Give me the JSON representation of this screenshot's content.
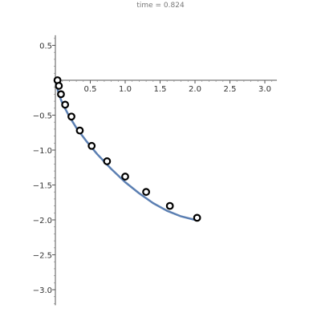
{
  "chart_data": {
    "type": "scatter",
    "title": "time = 0.824",
    "xlabel": "",
    "ylabel": "",
    "xlim": [
      0,
      3.15
    ],
    "ylim": [
      -3.2,
      0.68
    ],
    "x_ticks": [
      0.5,
      1.0,
      1.5,
      2.0,
      2.5,
      3.0
    ],
    "x_tick_labels": [
      "0.5",
      "1.0",
      "1.5",
      "2.0",
      "2.5",
      "3.0"
    ],
    "y_ticks": [
      0.5,
      -0.5,
      -1.0,
      -1.5,
      -2.0,
      -2.5,
      -3.0
    ],
    "y_tick_labels": [
      "0.5",
      "−0.5",
      "−1.0",
      "−1.5",
      "−2.0",
      "−2.5",
      "−3.0"
    ],
    "grid": false,
    "series": [
      {
        "kind": "points",
        "color": "#000000",
        "x": [
          0.03,
          0.05,
          0.08,
          0.14,
          0.23,
          0.35,
          0.52,
          0.74,
          1.0,
          1.3,
          1.64,
          2.03
        ],
        "y": [
          0.0,
          -0.08,
          -0.2,
          -0.35,
          -0.52,
          -0.72,
          -0.94,
          -1.16,
          -1.38,
          -1.6,
          -1.8,
          -1.97
        ]
      },
      {
        "kind": "line",
        "color": "#5b7fb2",
        "x": [
          0.0,
          0.05,
          0.1,
          0.2,
          0.3,
          0.45,
          0.6,
          0.8,
          1.0,
          1.2,
          1.4,
          1.6,
          1.8,
          2.0
        ],
        "y": [
          0.0,
          -0.2,
          -0.33,
          -0.52,
          -0.68,
          -0.88,
          -1.06,
          -1.27,
          -1.46,
          -1.62,
          -1.76,
          -1.87,
          -1.95,
          -2.0
        ]
      }
    ]
  }
}
